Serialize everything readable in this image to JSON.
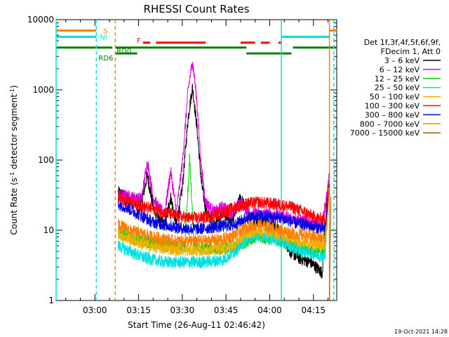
{
  "colors": {
    "background": "#ffffff",
    "axes": "#000000"
  },
  "chart_data": {
    "type": "line",
    "title": "RHESSI Count Rates",
    "xlabel": "Start Time (26-Aug-11 02:46:42)",
    "ylabel_main": "Count Rate (s",
    "ylabel_sup": "-1",
    "ylabel_rest": " detector segment",
    "ylabel_close": ")",
    "yscale": "log",
    "ylim": [
      1,
      10000
    ],
    "xlim_minutes": [
      "02:46:42",
      "04:23:00"
    ],
    "x_ticks": [
      "03:00",
      "03:15",
      "03:30",
      "03:45",
      "04:00",
      "04:15"
    ],
    "y_ticks": [
      "1",
      "10",
      "100",
      "1000",
      "10000"
    ],
    "timestamp": "19-Oct-2021 14:28",
    "legend": {
      "placement": "right",
      "header_lines": [
        "Det 1f,3f,4f,5f,6f,9f,",
        "FDecim 1, Att 0"
      ],
      "entries": [
        {
          "label": "3 – 6 keV",
          "color": "#000000"
        },
        {
          "label": "6 – 12 keV",
          "color": "#e000e0"
        },
        {
          "label": "12 – 25 keV",
          "color": "#00d000"
        },
        {
          "label": "25 – 50 keV",
          "color": "#00e0e0"
        },
        {
          "label": "50 – 100 keV",
          "color": "#f0b000"
        },
        {
          "label": "100 – 300 keV",
          "color": "#ff0000"
        },
        {
          "label": "300 – 800 keV",
          "color": "#0000e0"
        },
        {
          "label": "800 – 7000 keV",
          "color": "#ff8000"
        },
        {
          "label": "7000 – 15000 keV",
          "color": "#a06000"
        }
      ]
    },
    "flags": [
      {
        "label": "S",
        "color": "#ff8000",
        "value": 7000,
        "segments": [
          [
            "02:46:42",
            "03:00:30"
          ],
          [
            "04:20:30",
            "04:23:00"
          ]
        ]
      },
      {
        "label": "NI",
        "color": "#00e0e0",
        "value": 5700,
        "segments": [
          [
            "02:46:42",
            "03:00:30"
          ],
          [
            "04:04:00",
            "04:20:30"
          ]
        ]
      },
      {
        "label": "F",
        "color": "#ff0000",
        "value": 4700,
        "segments": [
          [
            "03:16:30",
            "03:19:00"
          ],
          [
            "03:21:00",
            "03:38:00"
          ],
          [
            "03:50:00",
            "03:55:00"
          ],
          [
            "03:57:00",
            "04:00:00"
          ],
          [
            "04:03:00",
            "04:04:00"
          ]
        ]
      },
      {
        "label": "RD0",
        "color": "#008000",
        "value": 4000,
        "segments": [
          [
            "02:46:42",
            "03:06:00"
          ],
          [
            "03:07:00",
            "03:52:00"
          ],
          [
            "04:08:00",
            "04:23:00"
          ]
        ]
      },
      {
        "label": "RD6",
        "color": "#008000",
        "value": 3300,
        "segments": [
          [
            "03:07:00",
            "03:14:30"
          ],
          [
            "03:52:00",
            "04:07:30"
          ]
        ]
      }
    ],
    "vertical_markers": [
      {
        "time": "02:46:42",
        "color": "#00e0e0",
        "style": "solid"
      },
      {
        "time": "03:00:30",
        "color": "#00e0e0",
        "style": "dashed"
      },
      {
        "time": "03:07:00",
        "color": "#ff8000",
        "style": "dashed"
      },
      {
        "time": "04:04:00",
        "color": "#00e0e0",
        "style": "solid"
      },
      {
        "time": "04:20:30",
        "color": "#ff8000",
        "style": "solid"
      },
      {
        "time": "04:22:00",
        "color": "#00e0e0",
        "style": "dashed"
      }
    ],
    "series": [
      {
        "name": "3 – 6 keV",
        "color": "#000000",
        "x": [
          "03:08:00",
          "03:12:00",
          "03:16:00",
          "03:18:00",
          "03:20:00",
          "03:22:00",
          "03:24:00",
          "03:26:00",
          "03:28:00",
          "03:30:00",
          "03:32:00",
          "03:33:30",
          "03:35:00",
          "03:36:30",
          "03:38:00",
          "03:41:00",
          "03:44:00",
          "03:47:00",
          "03:50:00",
          "03:53:00",
          "03:56:00",
          "04:00:00",
          "04:04:00",
          "04:07:00",
          "04:10:00",
          "04:14:00",
          "04:18:00",
          "04:19:30",
          "04:20:30"
        ],
        "y": [
          35,
          28,
          25,
          60,
          22,
          14,
          12,
          30,
          12,
          40,
          400,
          1100,
          300,
          50,
          20,
          12,
          18,
          13,
          30,
          15,
          14,
          13,
          9,
          5,
          4,
          3.5,
          2.5,
          25,
          55
        ]
      },
      {
        "name": "6 – 12 keV",
        "color": "#e000e0",
        "x": [
          "03:08:00",
          "03:12:00",
          "03:16:00",
          "03:18:00",
          "03:20:00",
          "03:22:00",
          "03:24:00",
          "03:26:00",
          "03:28:00",
          "03:30:00",
          "03:32:00",
          "03:33:30",
          "03:35:00",
          "03:36:30",
          "03:38:00",
          "03:41:00",
          "03:44:00",
          "03:47:00",
          "03:50:00",
          "03:53:00",
          "03:56:00",
          "04:00:00",
          "04:04:00",
          "04:07:00",
          "04:10:00",
          "04:14:00",
          "04:18:00",
          "04:19:30",
          "04:20:30"
        ],
        "y": [
          32,
          30,
          28,
          95,
          30,
          20,
          18,
          70,
          18,
          90,
          1000,
          2600,
          700,
          80,
          25,
          18,
          22,
          17,
          25,
          18,
          17,
          17,
          16,
          15,
          14,
          13,
          12,
          30,
          60
        ]
      },
      {
        "name": "12 – 25 keV",
        "color": "#00d000",
        "x": [
          "03:08:00",
          "03:12:00",
          "03:16:00",
          "03:20:00",
          "03:24:00",
          "03:28:00",
          "03:31:00",
          "03:32:30",
          "03:34:00",
          "03:38:00",
          "03:44:00",
          "03:50:00",
          "03:53:00",
          "03:56:00",
          "04:00:00",
          "04:04:00",
          "04:08:00",
          "04:12:00",
          "04:16:00",
          "04:19:00",
          "04:20:30"
        ],
        "y": [
          9,
          8,
          7,
          6.5,
          6,
          6,
          6,
          110,
          6,
          5.5,
          5.5,
          6,
          7.5,
          8,
          7.5,
          7,
          6,
          5.5,
          5,
          5,
          65
        ]
      },
      {
        "name": "25 – 50 keV",
        "color": "#00e0e0",
        "x": [
          "03:08:00",
          "03:12:00",
          "03:16:00",
          "03:20:00",
          "03:24:00",
          "03:28:00",
          "03:32:00",
          "03:36:00",
          "03:40:00",
          "03:44:00",
          "03:48:00",
          "03:52:00",
          "03:56:00",
          "04:00:00",
          "04:04:00",
          "04:08:00",
          "04:12:00",
          "04:16:00",
          "04:19:00",
          "04:20:30"
        ],
        "y": [
          6,
          5,
          4.2,
          3.8,
          3.5,
          3.5,
          3.5,
          3.5,
          3.6,
          3.8,
          5,
          7.5,
          8.5,
          8,
          7,
          5.5,
          5,
          4.5,
          4.2,
          50
        ]
      },
      {
        "name": "50 – 100 keV",
        "color": "#f0b000",
        "x": [
          "03:08:00",
          "03:12:00",
          "03:16:00",
          "03:20:00",
          "03:24:00",
          "03:28:00",
          "03:32:00",
          "03:36:00",
          "03:40:00",
          "03:44:00",
          "03:48:00",
          "03:52:00",
          "03:56:00",
          "04:00:00",
          "04:04:00",
          "04:08:00",
          "04:12:00",
          "04:16:00",
          "04:19:00",
          "04:20:30"
        ],
        "y": [
          9,
          7.5,
          6.5,
          5.8,
          5.5,
          5.3,
          5.2,
          5.2,
          5.3,
          5.5,
          6.5,
          9,
          10,
          9.5,
          8.5,
          7.5,
          6.8,
          6.2,
          6,
          45
        ]
      },
      {
        "name": "100 – 300 keV",
        "color": "#ff0000",
        "x": [
          "03:08:00",
          "03:12:00",
          "03:16:00",
          "03:20:00",
          "03:24:00",
          "03:28:00",
          "03:32:00",
          "03:36:00",
          "03:40:00",
          "03:44:00",
          "03:48:00",
          "03:52:00",
          "03:56:00",
          "04:00:00",
          "04:04:00",
          "04:08:00",
          "04:12:00",
          "04:16:00",
          "04:19:00",
          "04:20:30"
        ],
        "y": [
          30,
          25,
          22,
          20,
          18,
          16,
          15,
          15,
          16,
          18,
          21,
          24,
          25,
          24,
          23,
          21,
          18,
          15,
          14,
          45
        ]
      },
      {
        "name": "300 – 800 keV",
        "color": "#0000e0",
        "x": [
          "03:08:00",
          "03:12:00",
          "03:16:00",
          "03:20:00",
          "03:24:00",
          "03:28:00",
          "03:32:00",
          "03:36:00",
          "03:40:00",
          "03:44:00",
          "03:48:00",
          "03:52:00",
          "03:56:00",
          "04:00:00",
          "04:04:00",
          "04:08:00",
          "04:12:00",
          "04:16:00",
          "04:19:00",
          "04:20:30"
        ],
        "y": [
          24,
          20,
          16,
          13,
          12,
          11,
          10.5,
          10.5,
          11,
          11.5,
          12,
          15,
          16,
          15.5,
          15,
          13,
          12,
          11,
          10.5,
          40
        ]
      },
      {
        "name": "800 – 7000 keV",
        "color": "#ff8000",
        "x": [
          "03:08:00",
          "03:12:00",
          "03:16:00",
          "03:20:00",
          "03:24:00",
          "03:28:00",
          "03:32:00",
          "03:36:00",
          "03:40:00",
          "03:44:00",
          "03:48:00",
          "03:52:00",
          "03:56:00",
          "04:00:00",
          "04:04:00",
          "04:08:00",
          "04:12:00",
          "04:16:00",
          "04:19:00",
          "04:20:30"
        ],
        "y": [
          12,
          10,
          9,
          8,
          7.5,
          7,
          7,
          7,
          7.2,
          7.5,
          8.5,
          11,
          12,
          11,
          10,
          9,
          8.5,
          8,
          7.5,
          40
        ]
      },
      {
        "name": "7000 – 15000 keV",
        "color": "#a06000",
        "x": [
          "04:20:30",
          "04:21:00"
        ],
        "y": [
          1,
          30
        ]
      }
    ]
  }
}
